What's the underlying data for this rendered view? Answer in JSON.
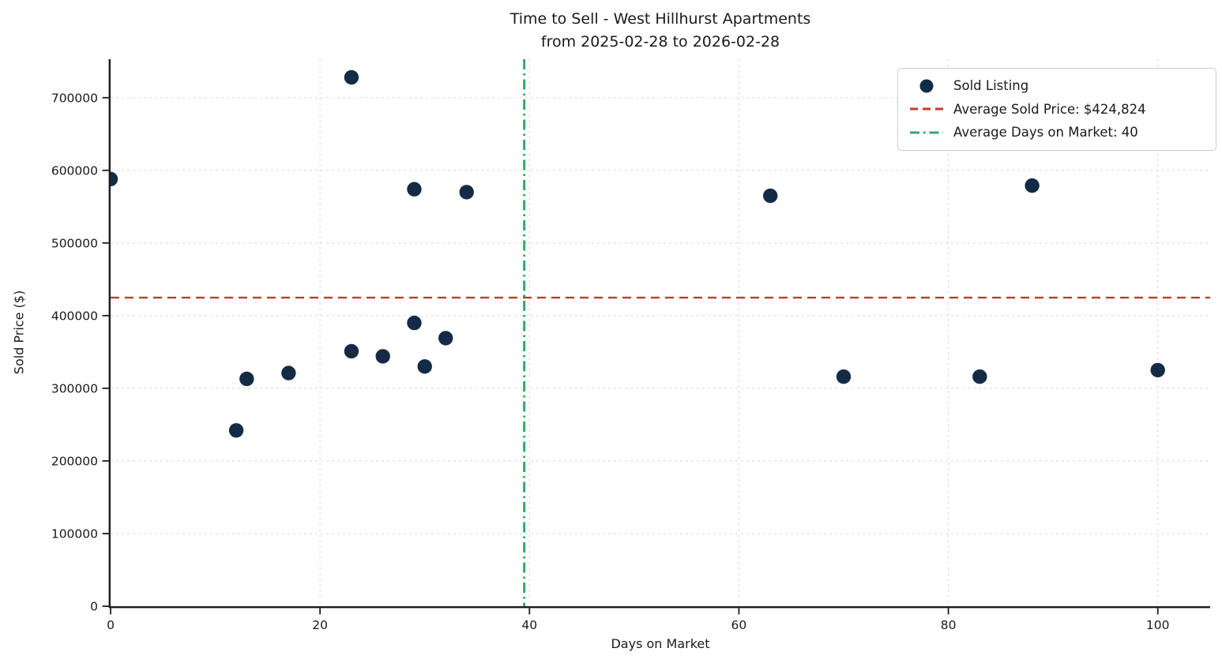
{
  "title": {
    "line1": "Time to Sell - West Hillhurst Apartments",
    "line2": "from 2025-02-28 to 2026-02-28"
  },
  "chart_data": {
    "type": "scatter",
    "title": "Time to Sell - West Hillhurst Apartments",
    "subtitle": "from 2025-02-28 to 2026-02-28",
    "xlabel": "Days on Market",
    "ylabel": "Sold Price ($)",
    "xlim": [
      0,
      105
    ],
    "ylim": [
      0,
      753000
    ],
    "x_ticks": [
      0,
      20,
      40,
      60,
      80,
      100
    ],
    "y_ticks": [
      0,
      100000,
      200000,
      300000,
      400000,
      500000,
      600000,
      700000
    ],
    "grid": true,
    "legend_position": "upper right",
    "series": [
      {
        "name": "Sold Listing",
        "color": "#142b45",
        "points": [
          [
            0,
            588000
          ],
          [
            12,
            242000
          ],
          [
            13,
            313000
          ],
          [
            17,
            321000
          ],
          [
            23,
            728000
          ],
          [
            23,
            351000
          ],
          [
            26,
            344000
          ],
          [
            29,
            574000
          ],
          [
            29,
            390000
          ],
          [
            30,
            330000
          ],
          [
            32,
            369000
          ],
          [
            34,
            570000
          ],
          [
            63,
            565000
          ],
          [
            70,
            316000
          ],
          [
            83,
            316000
          ],
          [
            88,
            579000
          ],
          [
            100,
            325000
          ]
        ]
      }
    ],
    "reference_lines": [
      {
        "label": "Average Sold Price: $424,824",
        "orientation": "horizontal",
        "value": 424824,
        "style": "dashed",
        "color": "#c5392b"
      },
      {
        "label": "Average Days on Market: 40",
        "orientation": "vertical",
        "value": 39.5,
        "displayed_value": 40,
        "style": "dashdot",
        "color": "#2fab6a"
      }
    ],
    "legend": [
      {
        "label": "Sold Listing",
        "marker": "dot",
        "color": "#142b45"
      },
      {
        "label": "Average Sold Price: $424,824",
        "marker": "dashed",
        "color": "#c5392b"
      },
      {
        "label": "Average Days on Market: 40",
        "marker": "dashdot",
        "color": "#2fab6a"
      }
    ],
    "colors": {
      "axis": "#1b1b1b",
      "grid": "#d8d8d8",
      "text": "#1a1a1a",
      "background": "#ffffff"
    }
  }
}
